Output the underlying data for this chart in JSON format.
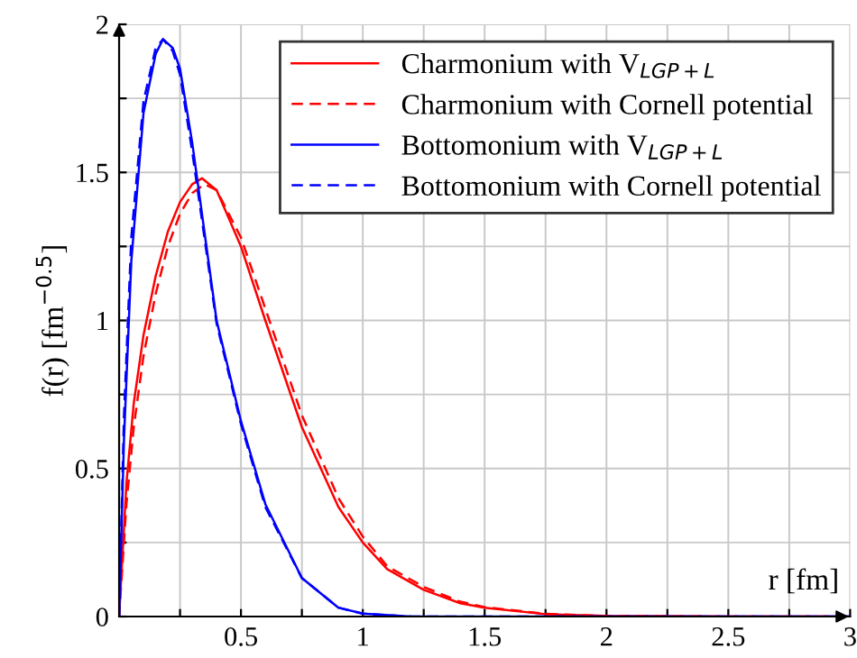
{
  "chart_data": {
    "type": "line",
    "xlabel": "r [fm]",
    "ylabel": "f(r) [fm$^{−0.5}$]",
    "xlim": [
      0,
      3
    ],
    "ylim": [
      0,
      2
    ],
    "xticks": [
      {
        "value": 0.25,
        "label": null
      },
      0.5,
      {
        "value": 0.75,
        "label": null
      },
      1,
      {
        "value": 1.25,
        "label": null
      },
      1.5,
      {
        "value": 1.75,
        "label": null
      },
      2,
      {
        "value": 2.25,
        "label": null
      },
      2.5,
      {
        "value": 2.75,
        "label": null
      },
      3
    ],
    "yticks": [
      0,
      {
        "value": 0.25,
        "label": null
      },
      0.5,
      {
        "value": 0.75,
        "label": null
      },
      1,
      {
        "value": 1.25,
        "label": null
      },
      1.5,
      {
        "value": 1.75,
        "label": null
      },
      2
    ],
    "grid": true,
    "legend": "top right",
    "marker": "none",
    "series": [
      {
        "name": "Charmonium with V$_{LGP+L}$",
        "color": "#ff0000",
        "line_style": "solid",
        "x": [
          0,
          0.03,
          0.06,
          0.1,
          0.15,
          0.2,
          0.25,
          0.3,
          0.34,
          0.4,
          0.5,
          0.6,
          0.75,
          0.9,
          1,
          1.1,
          1.25,
          1.4,
          1.5,
          1.75,
          2,
          2.5,
          3
        ],
        "values": [
          0,
          0.45,
          0.72,
          0.95,
          1.15,
          1.3,
          1.4,
          1.46,
          1.48,
          1.44,
          1.25,
          1.0,
          0.64,
          0.37,
          0.25,
          0.16,
          0.09,
          0.045,
          0.03,
          0.008,
          0.002,
          0,
          0
        ]
      },
      {
        "name": "Charmonium with Cornell potential",
        "color": "#ff0000",
        "line_style": "dashed",
        "x": [
          0,
          0.03,
          0.06,
          0.1,
          0.15,
          0.2,
          0.25,
          0.3,
          0.35,
          0.4,
          0.5,
          0.6,
          0.75,
          0.9,
          1,
          1.1,
          1.25,
          1.4,
          1.5,
          1.75,
          2,
          2.5,
          3
        ],
        "values": [
          0,
          0.38,
          0.64,
          0.88,
          1.09,
          1.25,
          1.36,
          1.43,
          1.46,
          1.44,
          1.28,
          1.04,
          0.68,
          0.4,
          0.27,
          0.17,
          0.1,
          0.05,
          0.032,
          0.009,
          0.002,
          0,
          0
        ]
      },
      {
        "name": "Bottomonium with V$_{LGP+L}$",
        "color": "#0000ff",
        "line_style": "solid",
        "x": [
          0,
          0.02,
          0.05,
          0.1,
          0.15,
          0.18,
          0.22,
          0.25,
          0.3,
          0.35,
          0.4,
          0.5,
          0.6,
          0.75,
          0.9,
          1,
          1.2,
          1.5,
          3
        ],
        "values": [
          0,
          0.6,
          1.2,
          1.7,
          1.9,
          1.95,
          1.92,
          1.85,
          1.6,
          1.3,
          1.0,
          0.66,
          0.38,
          0.13,
          0.03,
          0.01,
          0,
          0,
          0
        ]
      },
      {
        "name": "Bottomonium with Cornell potential",
        "color": "#0000ff",
        "line_style": "dashed",
        "x": [
          0,
          0.02,
          0.05,
          0.1,
          0.15,
          0.18,
          0.22,
          0.25,
          0.3,
          0.35,
          0.4,
          0.5,
          0.6,
          0.75,
          0.9,
          1,
          1.2,
          1.5,
          3
        ],
        "values": [
          0,
          0.68,
          1.28,
          1.74,
          1.92,
          1.95,
          1.91,
          1.83,
          1.57,
          1.28,
          0.99,
          0.65,
          0.37,
          0.13,
          0.03,
          0.01,
          0,
          0,
          0
        ]
      }
    ]
  }
}
